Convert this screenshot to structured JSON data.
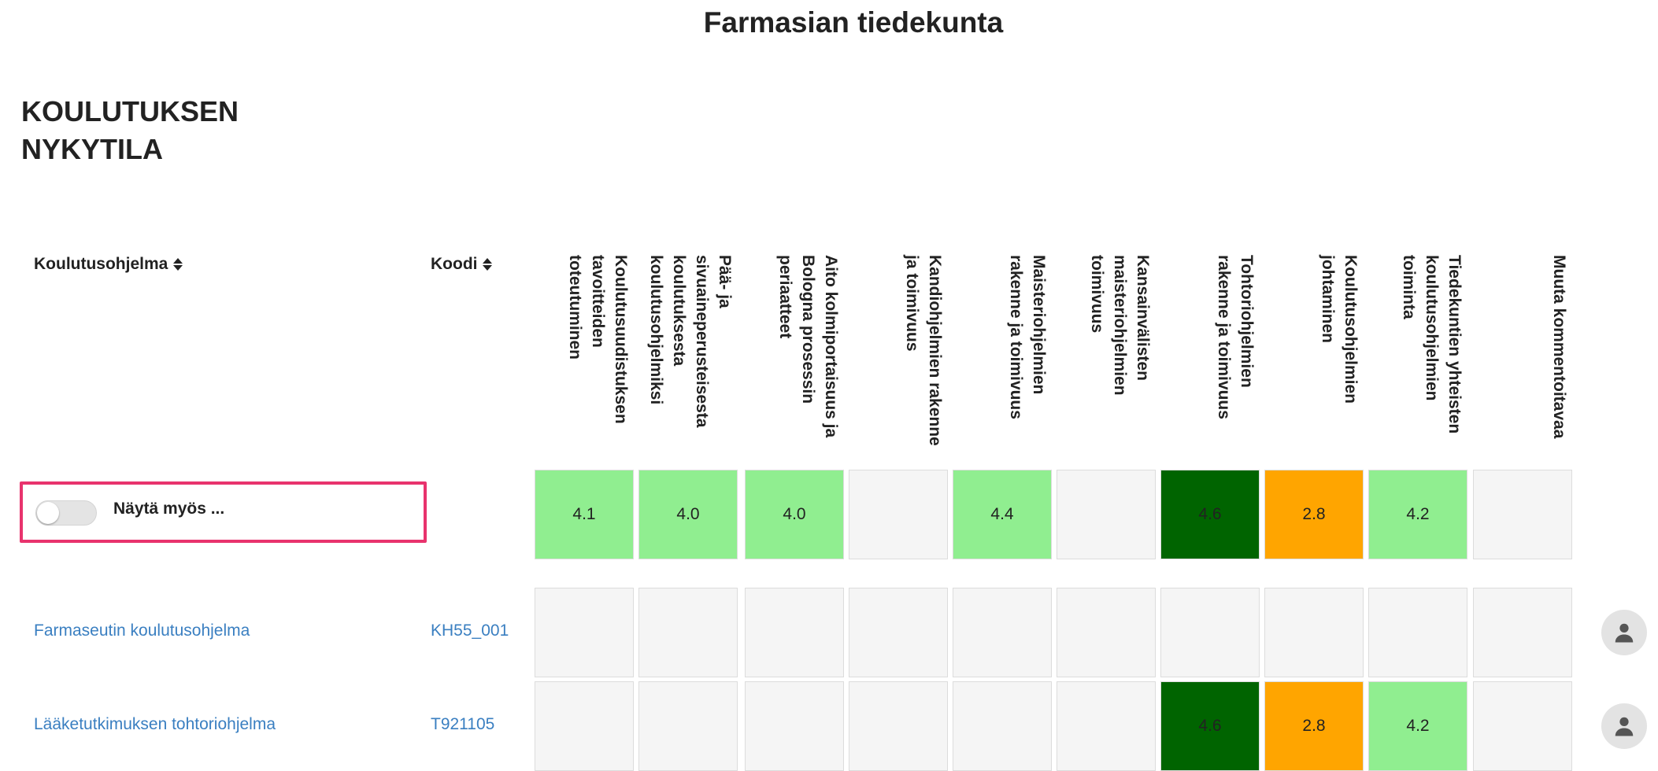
{
  "page_title": "Farmasian tiedekunta",
  "section_title": "KOULUTUKSEN NYKYTILA",
  "columns": {
    "program_label": "Koulutusohjelma",
    "code_label": "Koodi",
    "questions": [
      "Koulutusuudistuksen tavoitteiden toteutuminen",
      "Pää- ja sivuaineperusteisesta koulutuksesta koulutusohjelmiksi",
      "Aito kolmiportaisuus ja Bologna prosessin periaatteet",
      "Kandiohjelmien rakenne ja toimivuus",
      "Maisteriohjelmien rakenne ja toimivuus",
      "Kansainvälisten maisteriohjelmien toimivuus",
      "Tohtoriohjelmien rakenne ja toimivuus",
      "Koulutusohjelmien johtaminen",
      "Tiedekuntien yhteisten koulutusohjelmien toiminta",
      "Muuta kommentoitavaa"
    ]
  },
  "toggle": {
    "label": "Näytä myös ...",
    "checked": false
  },
  "summary_row": {
    "values": [
      "4.1",
      "4.0",
      "4.0",
      "",
      "4.4",
      "",
      "4.6",
      "2.8",
      "4.2",
      ""
    ],
    "colors": [
      "#90ee90",
      "#90ee90",
      "#90ee90",
      "#f5f5f5",
      "#90ee90",
      "#f5f5f5",
      "#006400",
      "#ffa500",
      "#90ee90",
      "#f5f5f5"
    ]
  },
  "programs": [
    {
      "name": "Farmaseutin koulutusohjelma",
      "code": "KH55_001",
      "values": [
        "",
        "",
        "",
        "",
        "",
        "",
        "",
        "",
        "",
        ""
      ],
      "colors": [
        "#f5f5f5",
        "#f5f5f5",
        "#f5f5f5",
        "#f5f5f5",
        "#f5f5f5",
        "#f5f5f5",
        "#f5f5f5",
        "#f5f5f5",
        "#f5f5f5",
        "#f5f5f5"
      ],
      "avatar_icon": "user-icon"
    },
    {
      "name": "Lääketutkimuksen tohtoriohjelma",
      "code": "T921105",
      "values": [
        "",
        "",
        "",
        "",
        "",
        "",
        "4.6",
        "2.8",
        "4.2",
        ""
      ],
      "colors": [
        "#f5f5f5",
        "#f5f5f5",
        "#f5f5f5",
        "#f5f5f5",
        "#f5f5f5",
        "#f5f5f5",
        "#006400",
        "#ffa500",
        "#90ee90",
        "#f5f5f5"
      ],
      "avatar_icon": "user-icon"
    }
  ],
  "colors": {
    "link": "#3a7fc1",
    "highlight_border": "#e8336d",
    "good": "#90ee90",
    "excellent": "#006400",
    "warning": "#ffa500",
    "empty": "#f5f5f5"
  }
}
